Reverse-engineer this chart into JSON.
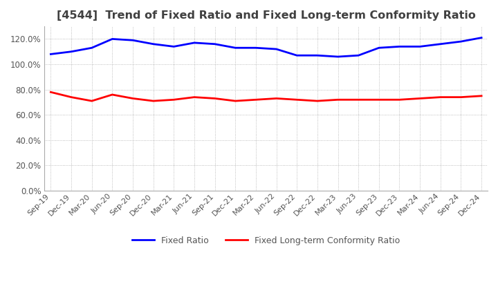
{
  "title": "[4544]  Trend of Fixed Ratio and Fixed Long-term Conformity Ratio",
  "title_color": "#404040",
  "x_labels": [
    "Sep-19",
    "Dec-19",
    "Mar-20",
    "Jun-20",
    "Sep-20",
    "Dec-20",
    "Mar-21",
    "Jun-21",
    "Sep-21",
    "Dec-21",
    "Mar-22",
    "Jun-22",
    "Sep-22",
    "Dec-22",
    "Mar-23",
    "Jun-23",
    "Sep-23",
    "Dec-23",
    "Mar-24",
    "Jun-24",
    "Sep-24",
    "Dec-24"
  ],
  "fixed_ratio": [
    1.08,
    1.1,
    1.13,
    1.2,
    1.19,
    1.16,
    1.14,
    1.17,
    1.16,
    1.13,
    1.13,
    1.12,
    1.07,
    1.07,
    1.06,
    1.07,
    1.13,
    1.14,
    1.14,
    1.16,
    1.18,
    1.21
  ],
  "fixed_lt_ratio": [
    0.78,
    0.74,
    0.71,
    0.76,
    0.73,
    0.71,
    0.72,
    0.74,
    0.73,
    0.71,
    0.72,
    0.73,
    0.72,
    0.71,
    0.72,
    0.72,
    0.72,
    0.72,
    0.73,
    0.74,
    0.74,
    0.75
  ],
  "fixed_ratio_color": "#0000FF",
  "fixed_lt_ratio_color": "#FF0000",
  "background_color": "#ffffff",
  "plot_bg_color": "#ffffff",
  "grid_color": "#aaaaaa",
  "ylim": [
    0.0,
    1.3
  ],
  "yticks": [
    0.0,
    0.2,
    0.4,
    0.6,
    0.8,
    1.0,
    1.2
  ],
  "legend_fixed_ratio": "Fixed Ratio",
  "legend_fixed_lt_ratio": "Fixed Long-term Conformity Ratio",
  "line_width": 2.0
}
